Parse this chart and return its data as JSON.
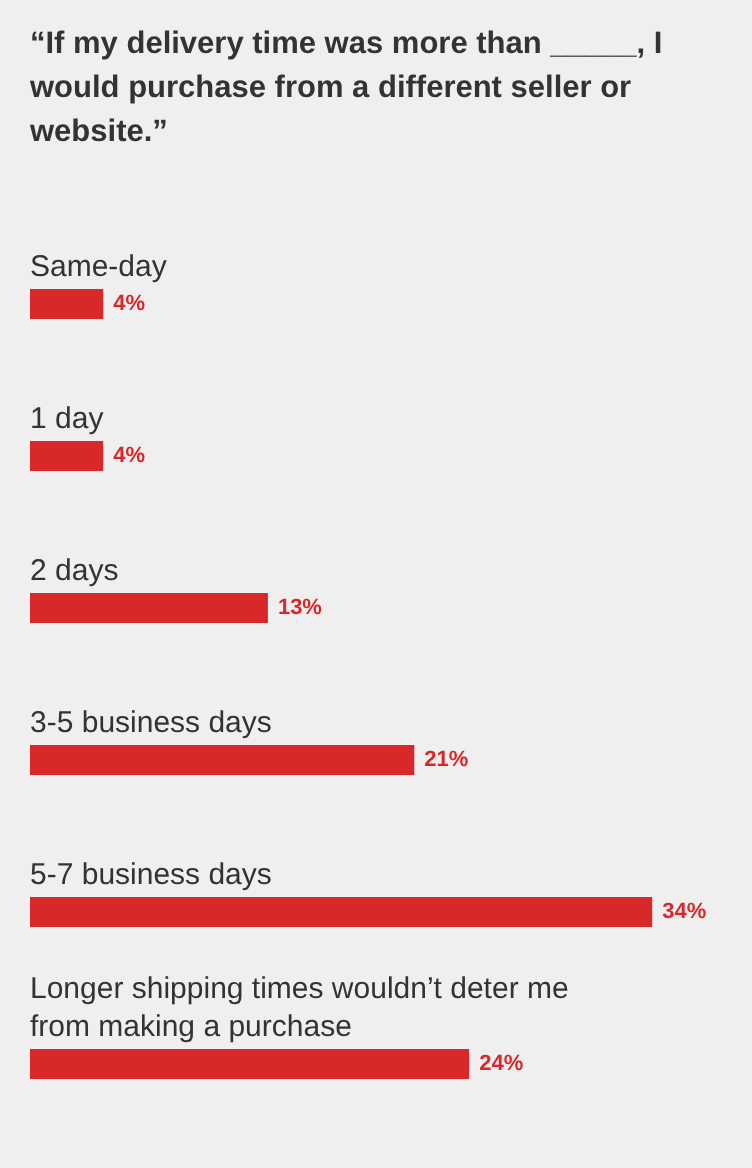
{
  "chart_data": {
    "type": "bar",
    "orientation": "horizontal",
    "title": "“If my delivery time was more than _____, I would purchase from a different seller or website.”",
    "categories": [
      "Same-day",
      "1 day",
      "2 days",
      "3-5 business days",
      "5-7 business days",
      "Longer shipping times wouldn’t deter me from making a purchase"
    ],
    "values": [
      4,
      4,
      13,
      21,
      34,
      24
    ],
    "value_labels": [
      "4%",
      "4%",
      "13%",
      "21%",
      "34%",
      "24%"
    ],
    "color": "#d9282a"
  }
}
